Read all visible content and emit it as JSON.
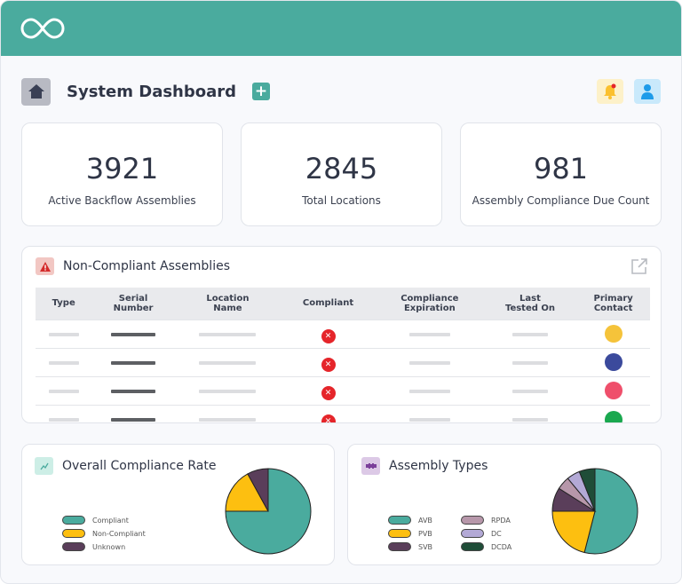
{
  "header": {
    "logo": "infinity-logo"
  },
  "page": {
    "title": "System Dashboard",
    "add_icon": "plus-icon",
    "notification_icon": "bell-icon",
    "profile_icon": "user-icon",
    "home_icon": "home-icon"
  },
  "stats": [
    {
      "value": "3921",
      "label": "Active Backflow Assemblies"
    },
    {
      "value": "2845",
      "label": "Total Locations"
    },
    {
      "value": "981",
      "label": "Assembly Compliance Due Count"
    }
  ],
  "noncompliant": {
    "title": "Non-Compliant Assemblies",
    "icon": "warning-icon",
    "open_icon": "external-link-icon",
    "columns": [
      "Type",
      "Serial\nNumber",
      "Location\nName",
      "Compliant",
      "Compliance\nExpiration",
      "Last\nTested On",
      "Primary\nContact"
    ],
    "rows": [
      {
        "compliant": "x",
        "contact_color": "#f5c33a"
      },
      {
        "compliant": "x",
        "contact_color": "#3b4a9c"
      },
      {
        "compliant": "x",
        "contact_color": "#ef4f6b"
      },
      {
        "compliant": "x",
        "contact_color": "#1aa84f"
      }
    ]
  },
  "compliance": {
    "title": "Overall Compliance Rate",
    "icon": "chart-icon"
  },
  "assembly": {
    "title": "Assembly Types",
    "icon": "valve-icon"
  },
  "colors": {
    "accent": "#4aab9e",
    "error": "#e5252a"
  },
  "chart_data": [
    {
      "type": "pie",
      "title": "Overall Compliance Rate",
      "legend": "left",
      "categories": [
        "Compliant",
        "Non-Compliant",
        "Unknown"
      ],
      "values": [
        75,
        17,
        8
      ],
      "colors": [
        "#4aab9e",
        "#fdbf10",
        "#5a3e5a"
      ]
    },
    {
      "type": "pie",
      "title": "Assembly Types",
      "legend": "left",
      "categories": [
        "AVB",
        "PVB",
        "SVB",
        "RPDA",
        "DC",
        "DCDA"
      ],
      "values": [
        54,
        21,
        9,
        5,
        5,
        6
      ],
      "colors": [
        "#4aab9e",
        "#fdbf10",
        "#5a3e5a",
        "#b797aa",
        "#b3a9d6",
        "#1f4d38"
      ]
    }
  ]
}
